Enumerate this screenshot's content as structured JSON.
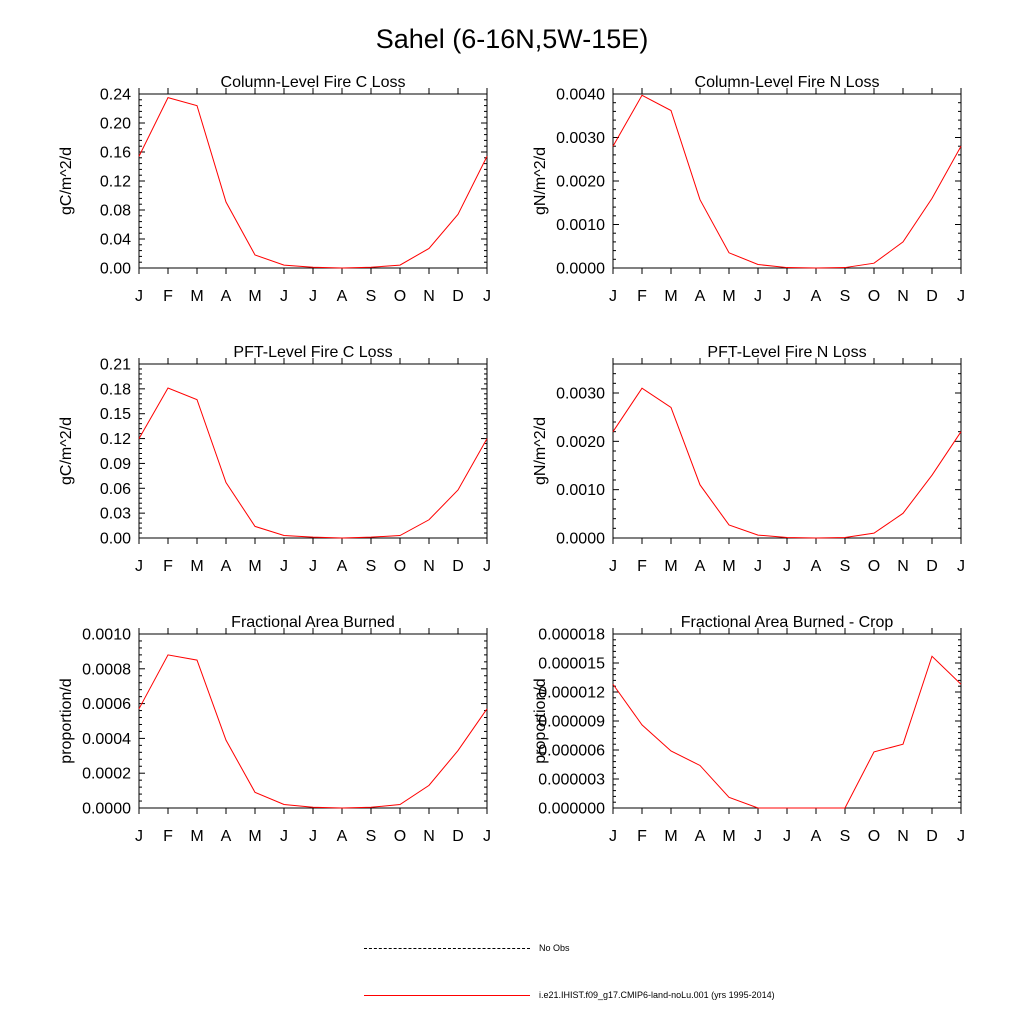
{
  "figure_title": "Sahel (6-16N,5W-15E)",
  "months": [
    "J",
    "F",
    "M",
    "A",
    "M",
    "J",
    "J",
    "A",
    "S",
    "O",
    "N",
    "D",
    "J"
  ],
  "legend": {
    "entries": [
      {
        "label": "No Obs",
        "style": "dashed",
        "color": "#000000"
      },
      {
        "label": "i.e21.IHIST.f09_g17.CMIP6-land-noLu.001 (yrs 1995-2014)",
        "style": "solid",
        "color": "#ff0000"
      }
    ]
  },
  "chart_data": [
    {
      "type": "line",
      "title": "Column-Level Fire C Loss",
      "ylabel": "gC/m^2/d",
      "ylim": [
        0,
        0.24
      ],
      "yticks": [
        "0.00",
        "0.04",
        "0.08",
        "0.12",
        "0.16",
        "0.20",
        "0.24"
      ],
      "series": [
        {
          "color": "#ff0000",
          "values": [
            0.154,
            0.235,
            0.224,
            0.091,
            0.018,
            0.004,
            0.001,
            0.0,
            0.001,
            0.004,
            0.027,
            0.074,
            0.154
          ]
        }
      ]
    },
    {
      "type": "line",
      "title": "Column-Level Fire N Loss",
      "ylabel": "gN/m^2/d",
      "ylim": [
        0,
        0.004
      ],
      "yticks": [
        "0.0000",
        "0.0010",
        "0.0020",
        "0.0030",
        "0.0040"
      ],
      "series": [
        {
          "color": "#ff0000",
          "values": [
            0.0028,
            0.00397,
            0.00362,
            0.00157,
            0.00035,
            8e-05,
            1e-05,
            0.0,
            1e-05,
            0.00011,
            0.0006,
            0.0016,
            0.0028
          ]
        }
      ]
    },
    {
      "type": "line",
      "title": "PFT-Level Fire C Loss",
      "ylabel": "gC/m^2/d",
      "ylim": [
        0,
        0.21
      ],
      "yticks": [
        "0.00",
        "0.03",
        "0.06",
        "0.09",
        "0.12",
        "0.15",
        "0.18",
        "0.21"
      ],
      "series": [
        {
          "color": "#ff0000",
          "values": [
            0.12,
            0.181,
            0.167,
            0.067,
            0.014,
            0.003,
            0.001,
            0.0,
            0.001,
            0.003,
            0.022,
            0.058,
            0.12
          ]
        }
      ]
    },
    {
      "type": "line",
      "title": "PFT-Level Fire N Loss",
      "ylabel": "gN/m^2/d",
      "ylim": [
        0,
        0.0036
      ],
      "yticks": [
        "0.0000",
        "0.0010",
        "0.0020",
        "0.0030"
      ],
      "series": [
        {
          "color": "#ff0000",
          "values": [
            0.0022,
            0.0031,
            0.0027,
            0.0011,
            0.00027,
            6e-05,
            1e-05,
            0.0,
            1e-05,
            0.0001,
            0.00051,
            0.0013,
            0.0022
          ]
        }
      ]
    },
    {
      "type": "line",
      "title": "Fractional Area Burned",
      "ylabel": "proportion/d",
      "ylim": [
        0,
        0.001
      ],
      "yticks": [
        "0.0000",
        "0.0002",
        "0.0004",
        "0.0006",
        "0.0008",
        "0.0010"
      ],
      "series": [
        {
          "color": "#ff0000",
          "values": [
            0.00057,
            0.00088,
            0.00085,
            0.00039,
            9e-05,
            2e-05,
            4e-06,
            0.0,
            4e-06,
            2e-05,
            0.00013,
            0.00033,
            0.00057
          ]
        }
      ]
    },
    {
      "type": "line",
      "title": "Fractional Area Burned - Crop",
      "ylabel": "proportion/d",
      "ylim": [
        0,
        1.8e-05
      ],
      "yticks": [
        "0.000000",
        "0.000003",
        "0.000006",
        "0.000009",
        "0.000012",
        "0.000015",
        "0.000018"
      ],
      "series": [
        {
          "color": "#ff0000",
          "values": [
            1.28e-05,
            8.6e-06,
            5.9e-06,
            4.4e-06,
            1.1e-06,
            0.0,
            0.0,
            0.0,
            0.0,
            5.8e-06,
            6.6e-06,
            1.57e-05,
            1.28e-05
          ]
        }
      ]
    }
  ]
}
